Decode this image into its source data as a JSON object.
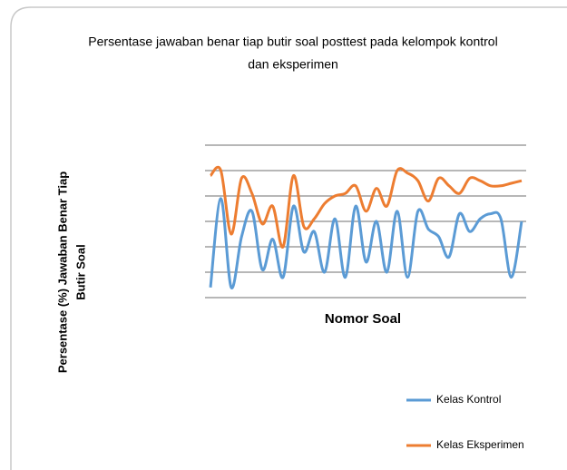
{
  "chart_data": {
    "type": "line",
    "title": [
      "Persentase jawaban benar tiap butir soal posttest pada kelompok kontrol",
      "dan eksperimen"
    ],
    "ylabel": [
      "Persentase  (%) Jawaban Benar Tiap",
      "Butir Soal"
    ],
    "xlabel": "Nomor Soal",
    "categories": [
      null,
      null,
      null,
      null,
      null,
      null,
      null,
      null,
      null,
      null,
      null,
      null,
      null,
      null,
      null,
      null,
      null,
      null,
      null,
      null,
      null,
      null,
      null,
      null,
      null,
      null,
      null,
      null,
      null,
      null,
      null
    ],
    "series": [
      {
        "name": "Kelas Kontrol",
        "color": "#5b9bd5",
        "values": [
          0.4,
          3.9,
          0.4,
          2.4,
          3.4,
          1.1,
          2.3,
          0.8,
          3.6,
          1.8,
          2.6,
          1.0,
          3.1,
          0.8,
          3.6,
          1.4,
          3.0,
          1.0,
          3.4,
          0.8,
          3.4,
          2.7,
          2.4,
          1.6,
          3.3,
          2.6,
          3.1,
          3.3,
          3.1,
          0.8,
          3.0
        ]
      },
      {
        "name": "Kelas Eksperimen",
        "color": "#ed7d31",
        "values": [
          4.8,
          5.0,
          2.5,
          4.7,
          4.1,
          2.9,
          3.6,
          2.0,
          4.8,
          2.8,
          3.1,
          3.7,
          4.0,
          4.1,
          4.4,
          3.4,
          4.3,
          3.6,
          5.0,
          4.9,
          4.6,
          3.8,
          4.7,
          4.4,
          4.1,
          4.7,
          4.6,
          4.4,
          4.4,
          4.5,
          4.6
        ]
      }
    ],
    "ylim": [
      0,
      6
    ],
    "yticks": [
      0,
      1,
      2,
      3,
      4,
      5,
      6
    ],
    "grid": true,
    "legend": "lower right"
  }
}
